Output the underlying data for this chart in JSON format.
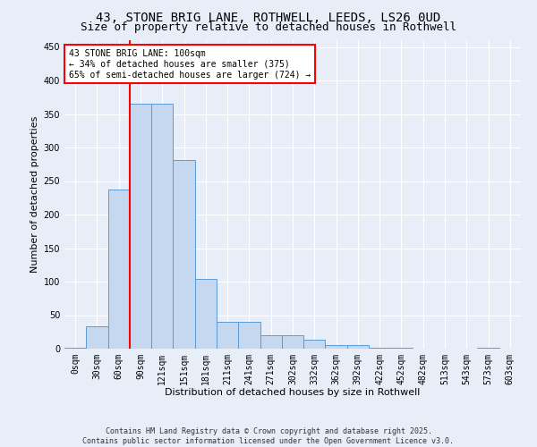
{
  "title_line1": "43, STONE BRIG LANE, ROTHWELL, LEEDS, LS26 0UD",
  "title_line2": "Size of property relative to detached houses in Rothwell",
  "xlabel": "Distribution of detached houses by size in Rothwell",
  "ylabel": "Number of detached properties",
  "bar_values": [
    2,
    33,
    237,
    365,
    365,
    281,
    104,
    40,
    40,
    20,
    20,
    14,
    5,
    5,
    2,
    1,
    0,
    0,
    0,
    2,
    0
  ],
  "bar_labels": [
    "0sqm",
    "30sqm",
    "60sqm",
    "90sqm",
    "121sqm",
    "151sqm",
    "181sqm",
    "211sqm",
    "241sqm",
    "271sqm",
    "302sqm",
    "332sqm",
    "362sqm",
    "392sqm",
    "422sqm",
    "452sqm",
    "482sqm",
    "513sqm",
    "543sqm",
    "573sqm",
    "603sqm"
  ],
  "bar_color": "#c5d8f0",
  "bar_edge_color": "#5b9bd5",
  "vline_x_index": 3,
  "vline_color": "red",
  "ylim": [
    0,
    460
  ],
  "yticks": [
    0,
    50,
    100,
    150,
    200,
    250,
    300,
    350,
    400,
    450
  ],
  "annotation_text": "43 STONE BRIG LANE: 100sqm\n← 34% of detached houses are smaller (375)\n65% of semi-detached houses are larger (724) →",
  "annotation_box_color": "white",
  "annotation_box_edge_color": "red",
  "footer_line1": "Contains HM Land Registry data © Crown copyright and database right 2025.",
  "footer_line2": "Contains public sector information licensed under the Open Government Licence v3.0.",
  "bg_color": "#e8eef8",
  "grid_color": "#ffffff",
  "title_fontsize": 10,
  "subtitle_fontsize": 9,
  "label_fontsize": 8,
  "tick_fontsize": 7,
  "annotation_fontsize": 7,
  "footer_fontsize": 6
}
